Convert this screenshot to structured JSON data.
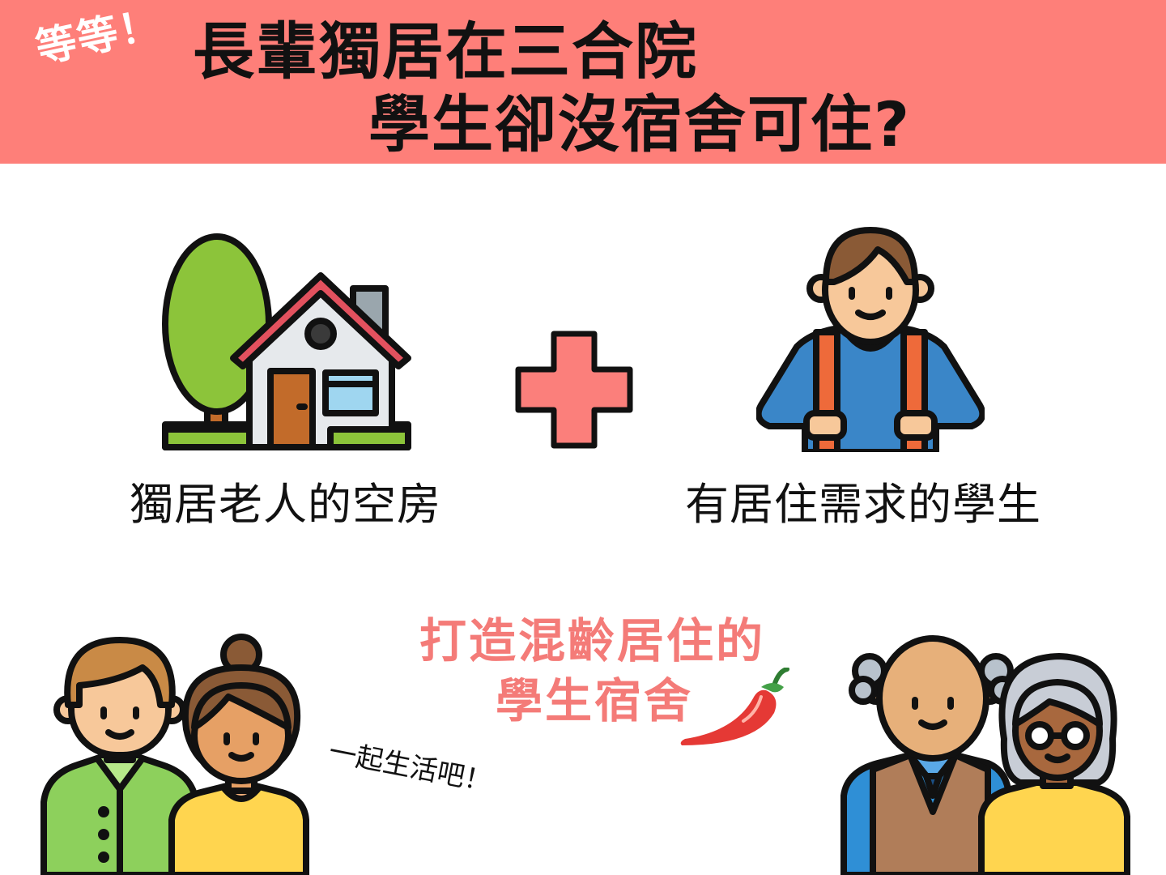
{
  "banner": {
    "wait_tag": "等等！",
    "title_line1": "長輩獨居在三合院",
    "title_line2": "學生卻沒宿舍可住?"
  },
  "captions": {
    "house": "獨居老人的空房",
    "student": "有居住需求的學生"
  },
  "slogan": {
    "line1": "打造混齡居住的",
    "line2": "學生宿舍"
  },
  "speech": "一起生活吧！",
  "icons": [
    "house-tree-icon",
    "plus-icon",
    "student-backpack-icon",
    "young-couple-icon",
    "chili-pepper-icon",
    "elderly-couple-icon"
  ],
  "colors": {
    "banner": "#fe7f79",
    "accent_text": "#f47b78",
    "plus": "#fb7f7b"
  }
}
